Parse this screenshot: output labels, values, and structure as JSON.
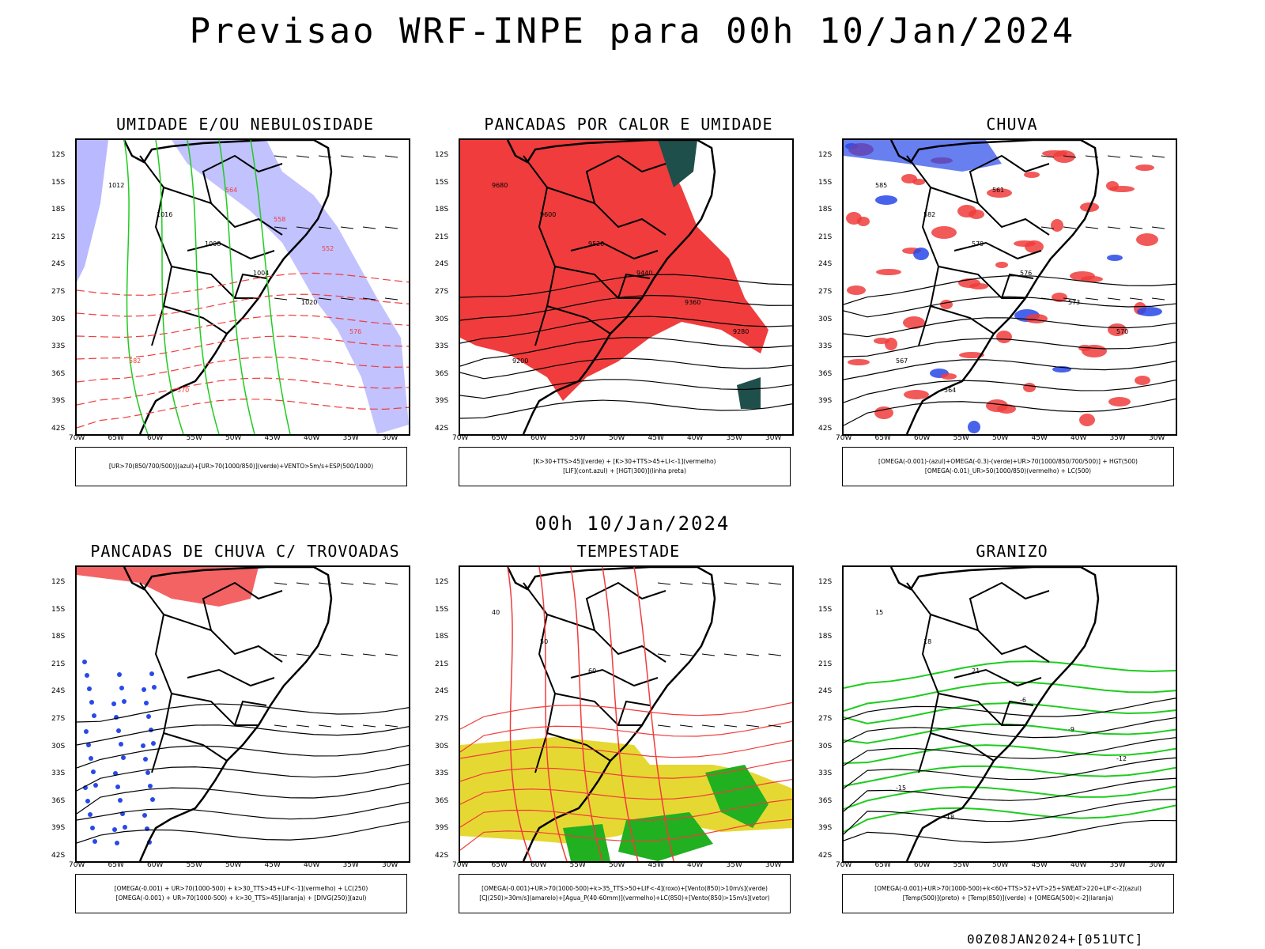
{
  "header": {
    "title": "Previsao WRF-INPE  para 00h 10/Jan/2024"
  },
  "subtitle": "00h 10/Jan/2024",
  "footer": "00Z08JAN2024+[051UTC]",
  "axes": {
    "lat_labels": [
      "12S",
      "15S",
      "18S",
      "21S",
      "24S",
      "27S",
      "30S",
      "33S",
      "36S",
      "39S",
      "42S"
    ],
    "lon_labels": [
      "70W",
      "65W",
      "60W",
      "55W",
      "50W",
      "45W",
      "40W",
      "35W",
      "30W"
    ]
  },
  "colors": {
    "red": "#f03c3c",
    "green": "#1ecc1e",
    "blue": "#2848e8",
    "lavender": "#a8a8ff",
    "yellow": "#e6d832",
    "darkteal": "#1f4f4a",
    "orange": "#f08020"
  },
  "panels": [
    {
      "id": "umidade",
      "title": "UMIDADE E/OU NEBULOSIDADE",
      "legend": [
        "[UR>70(850/700/500)](azul)+[UR>70(1000/850)](verde)+VENTO>5m/s+ESP(500/1000)"
      ],
      "labels": [
        "1012",
        "1016",
        "1008",
        "1004",
        "1020",
        "576",
        "582",
        "570",
        "564",
        "558",
        "552"
      ]
    },
    {
      "id": "pancadas_calor",
      "title": "PANCADAS POR CALOR E UMIDADE",
      "legend": [
        "[K>30+TTS>45](verde) + [K>30+TTS>45+LI<-1](vermelho)",
        "[LIF](cont.azul) + [HGT(300)](linha preta)"
      ],
      "labels": [
        "9680",
        "9600",
        "9520",
        "9440",
        "9360",
        "9280",
        "9200"
      ]
    },
    {
      "id": "chuva",
      "title": "CHUVA",
      "legend": [
        "[OMEGA(-0.001)-(azul)+OMEGA(-0.3)-(verde)+UR>70(1000/850/700/500)] + HGT(500)",
        "[OMEGA(-0.01)_UR>50(1000/850)(vermelho) + LC(500)"
      ],
      "labels": [
        "585",
        "582",
        "579",
        "576",
        "573",
        "570",
        "567",
        "564",
        "561"
      ]
    },
    {
      "id": "trovoadas",
      "title": "PANCADAS DE CHUVA C/ TROVOADAS",
      "legend": [
        "[OMEGA(-0.001) + UR>70(1000-500) + k>30_TTS>45+LIF<-1](vermelho) + LC(250)",
        "[OMEGA(-0.001) + UR>70(1000-500) + k>30_TTS>45](laranja) + [DIVG(250)](azul)"
      ],
      "labels": []
    },
    {
      "id": "tempestade",
      "title": "TEMPESTADE",
      "legend": [
        "[OMEGA(-0.001)+UR>70(1000-500)+k>35_TTS>50+LIF<-4](roxo)+[Vento(850)>10m/s](verde)",
        "[CJ(250)>30m/s](amarelo)+[Agua_P(40-60mm)](vermelho)+LC(850)+[Vento(850)>15m/s](vetor)"
      ],
      "labels": [
        "40",
        "50",
        "60"
      ]
    },
    {
      "id": "granizo",
      "title": "GRANIZO",
      "legend": [
        "[OMEGA(-0.001)+UR>70(1000-500)+k<60+TTS>52+VT>25+SWEAT>220+LIF<-2](azul)",
        "[Temp(500)](preto) + [Temp(850)](verde) + [OMEGA(500)<-2](laranja)"
      ],
      "labels": [
        "15",
        "18",
        "21",
        "-6",
        "-9",
        "-12",
        "-15",
        "-18"
      ]
    }
  ]
}
